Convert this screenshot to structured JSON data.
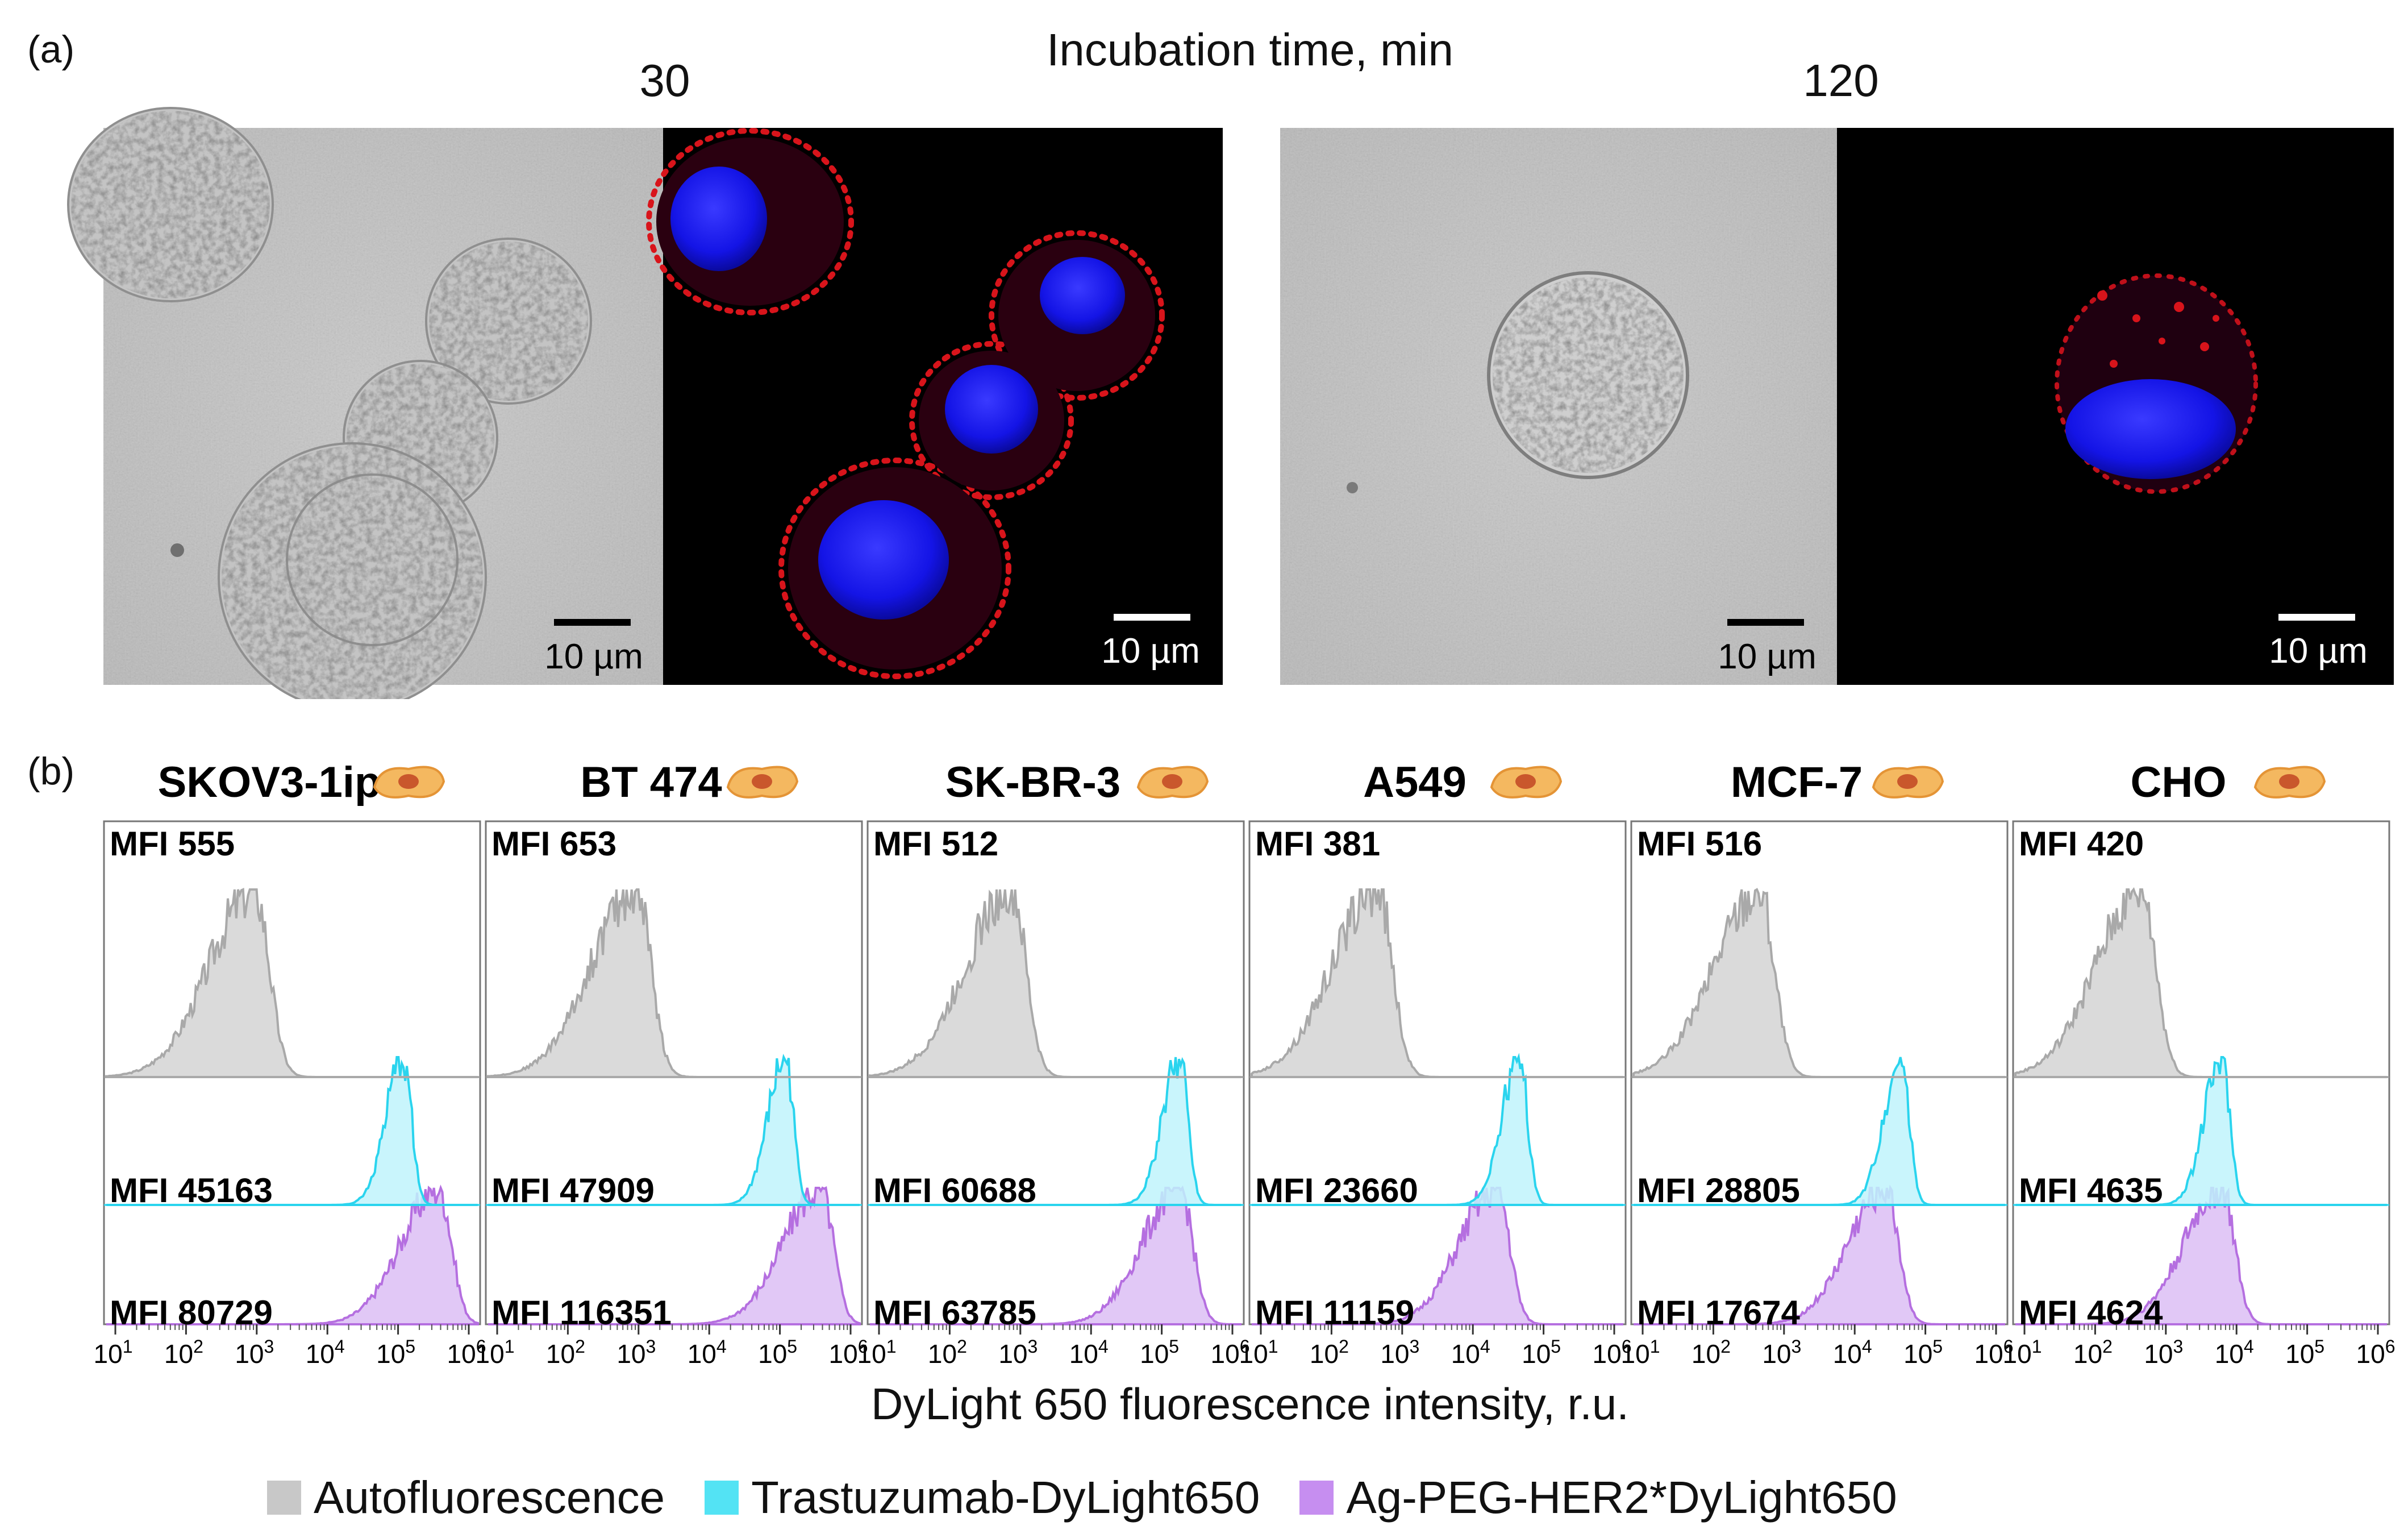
{
  "panel_a": {
    "letter": "(a)",
    "incubation_label": "Incubation time, min",
    "times": [
      "30",
      "120"
    ],
    "scale_bar_label": "10 µm"
  },
  "panel_b": {
    "letter": "(b)",
    "xlabel": "DyLight 650 fluorescence intensity, r.u.",
    "tick_labels": [
      {
        "base": "10",
        "exp": "1"
      },
      {
        "base": "10",
        "exp": "2"
      },
      {
        "base": "10",
        "exp": "3"
      },
      {
        "base": "10",
        "exp": "4"
      },
      {
        "base": "10",
        "exp": "5"
      },
      {
        "base": "10",
        "exp": "6"
      }
    ],
    "cell_icon": "cell-icon",
    "colors": {
      "autofluorescence": "#a9a9a9",
      "trastuzumab": "#2ad4ee",
      "agpeg": "#b56fe0"
    }
  },
  "legend": [
    {
      "label": "Autofluorescence",
      "color": "#c8c8c8"
    },
    {
      "label": "Trastuzumab-DyLight650",
      "color": "#53e3f4"
    },
    {
      "label": "Ag-PEG-HER2*DyLight650",
      "color": "#c68ef0"
    }
  ],
  "chart_data": {
    "type": "area",
    "xlabel": "DyLight 650 fluorescence intensity, r.u.",
    "x_scale": "log",
    "xlim": [
      10,
      1000000
    ],
    "grid": false,
    "legend_placement": "bottom",
    "series_labels": [
      "Autofluorescence",
      "Trastuzumab-DyLight650",
      "Ag-PEG-HER2*DyLight650"
    ],
    "panels": [
      {
        "cell_line": "SKOV3-1ip",
        "peaks": [
          1000,
          100000,
          300000
        ],
        "mfi": [
          "MFI 555",
          "MFI 45163",
          "MFI 80729"
        ]
      },
      {
        "cell_line": "BT 474",
        "peaks": [
          1000,
          100000,
          300000
        ],
        "mfi": [
          "MFI 653",
          "MFI 47909",
          "MFI 116351"
        ]
      },
      {
        "cell_line": "SK-BR-3",
        "peaks": [
          800,
          150000,
          150000
        ],
        "mfi": [
          "MFI 512",
          "MFI 60688",
          "MFI 63785"
        ]
      },
      {
        "cell_line": "A549",
        "peaks": [
          500,
          40000,
          20000
        ],
        "mfi": [
          "MFI 381",
          "MFI 23660",
          "MFI 11159"
        ]
      },
      {
        "cell_line": "MCF-7",
        "peaks": [
          500,
          40000,
          25000
        ],
        "mfi": [
          "MFI 516",
          "MFI 28805",
          "MFI 17674"
        ]
      },
      {
        "cell_line": "CHO",
        "peaks": [
          500,
          6000,
          6000
        ],
        "mfi": [
          "MFI 420",
          "MFI 4635",
          "MFI 4624"
        ]
      }
    ]
  }
}
